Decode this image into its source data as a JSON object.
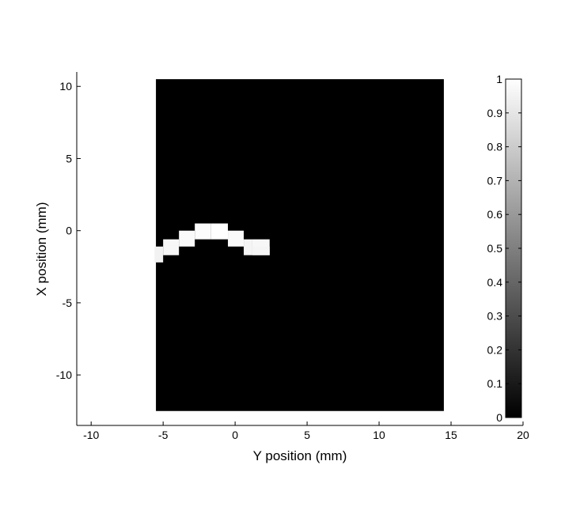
{
  "chart_data": {
    "type": "heatmap",
    "xlabel": "Y position (mm)",
    "ylabel": "X position (mm)",
    "xlim": [
      -11,
      20
    ],
    "ylim": [
      -13.5,
      11
    ],
    "xticks": [
      -10,
      -5,
      0,
      5,
      10,
      15,
      20
    ],
    "yticks": [
      -10,
      -5,
      0,
      5,
      10
    ],
    "image_extent": {
      "x": [
        -5.5,
        14.5
      ],
      "y": [
        -12.5,
        10.5
      ]
    },
    "background_value": 0,
    "cells": [
      {
        "x0": -5.6,
        "x1": -5.0,
        "y0": -2.2,
        "y1": -1.1,
        "value": 0.95
      },
      {
        "x0": -5.0,
        "x1": -3.9,
        "y0": -1.7,
        "y1": -0.6,
        "value": 0.97
      },
      {
        "x0": -3.9,
        "x1": -2.8,
        "y0": -1.1,
        "y1": 0.0,
        "value": 0.98
      },
      {
        "x0": -2.8,
        "x1": -1.7,
        "y0": -0.6,
        "y1": 0.5,
        "value": 0.99
      },
      {
        "x0": -1.7,
        "x1": -0.5,
        "y0": -0.6,
        "y1": 0.5,
        "value": 1.0
      },
      {
        "x0": -0.5,
        "x1": 0.6,
        "y0": -1.1,
        "y1": 0.0,
        "value": 0.98
      },
      {
        "x0": 0.6,
        "x1": 1.2,
        "y0": -1.7,
        "y1": -0.6,
        "value": 0.96
      },
      {
        "x0": 1.2,
        "x1": 2.4,
        "y0": -1.7,
        "y1": -0.6,
        "value": 0.97
      },
      {
        "x0": 1.2,
        "x1": 2.4,
        "y0": -1.7,
        "y1": -1.1,
        "value": 0.96
      }
    ],
    "colorbar": {
      "colormap": "gray",
      "range": [
        0,
        1
      ],
      "ticks": [
        "0",
        "0.1",
        "0.2",
        "0.3",
        "0.4",
        "0.5",
        "0.6",
        "0.7",
        "0.8",
        "0.9",
        "1"
      ]
    }
  }
}
